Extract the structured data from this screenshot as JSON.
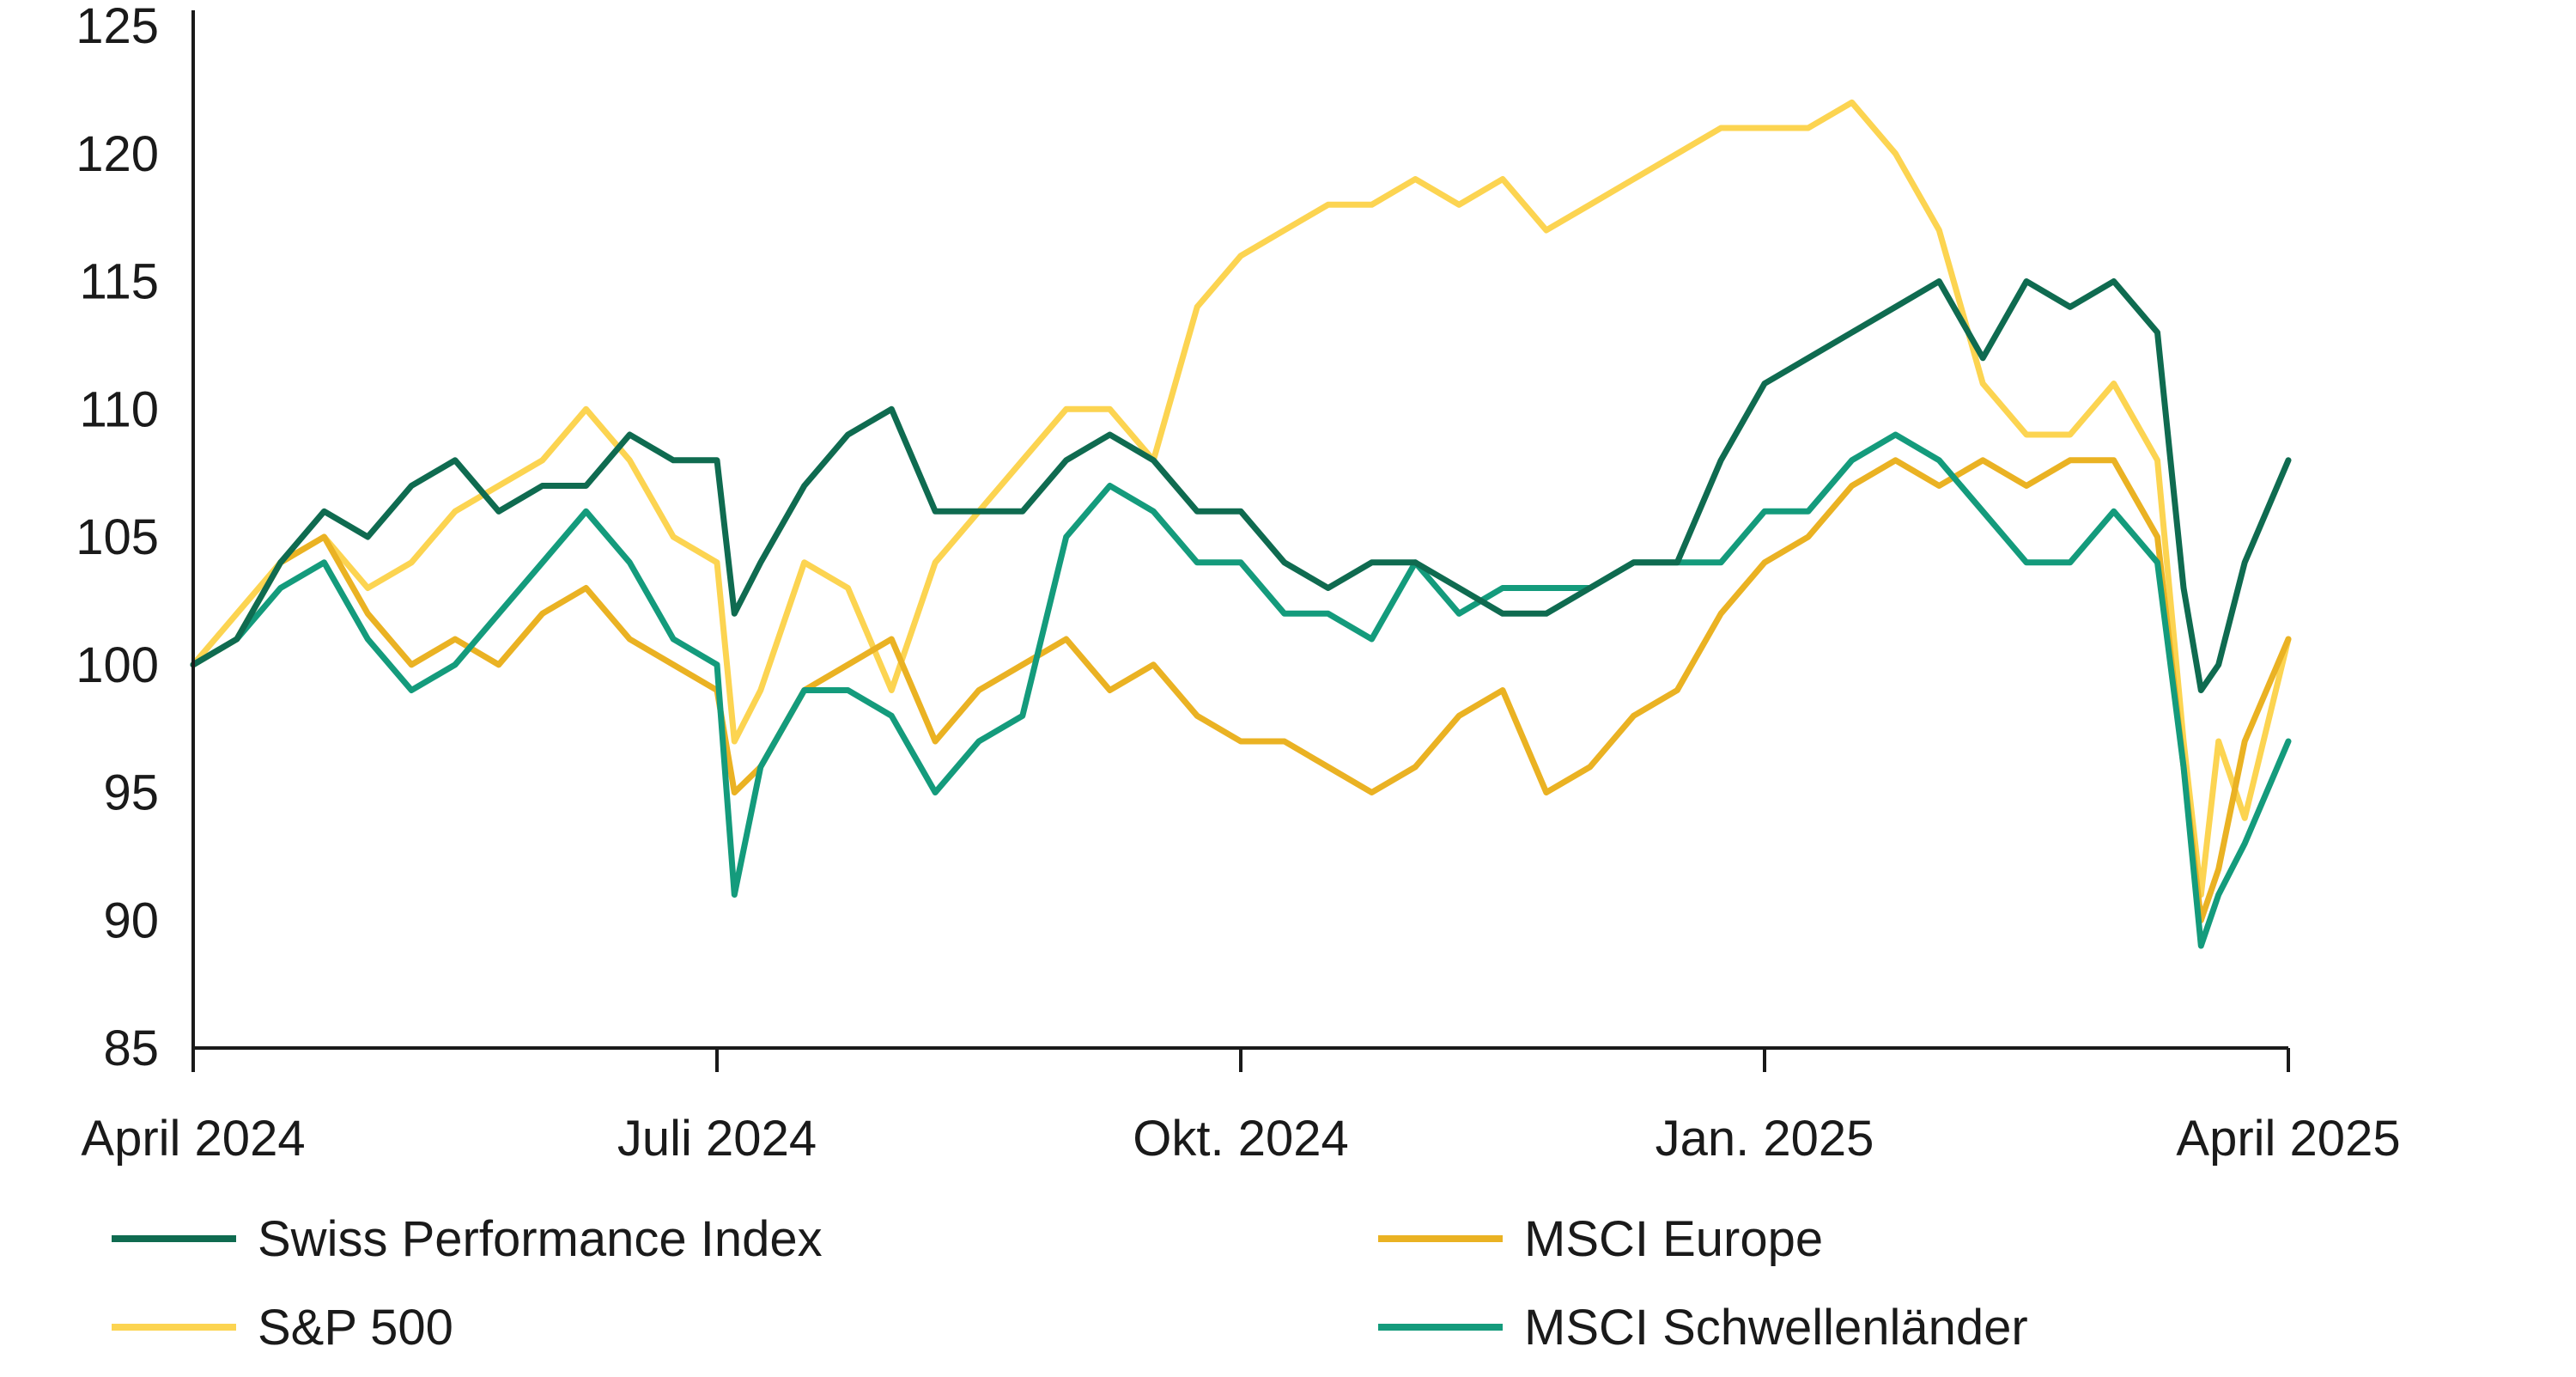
{
  "chart_data": {
    "type": "line",
    "title": "",
    "xlabel": "",
    "ylabel": "",
    "ylim": [
      85,
      125
    ],
    "xlim": [
      0,
      12
    ],
    "yticks": [
      85,
      90,
      95,
      100,
      105,
      110,
      115,
      120,
      125
    ],
    "xticks": [
      {
        "pos": 0,
        "label": "April 2024"
      },
      {
        "pos": 3,
        "label": "Juli 2024"
      },
      {
        "pos": 6,
        "label": "Okt. 2024"
      },
      {
        "pos": 9,
        "label": "Jan. 2025"
      },
      {
        "pos": 12,
        "label": "April 2025"
      }
    ],
    "grid": false,
    "legend_position": "bottom",
    "series": [
      {
        "name": "Swiss Performance Index",
        "color": "#0f6b50",
        "x": [
          0,
          0.25,
          0.5,
          0.75,
          1,
          1.25,
          1.5,
          1.75,
          2,
          2.25,
          2.5,
          2.75,
          3,
          3.1,
          3.25,
          3.5,
          3.75,
          4,
          4.25,
          4.5,
          4.75,
          5,
          5.25,
          5.5,
          5.75,
          6,
          6.25,
          6.5,
          6.75,
          7,
          7.25,
          7.5,
          7.75,
          8,
          8.25,
          8.5,
          8.75,
          9,
          9.25,
          9.5,
          9.75,
          10,
          10.25,
          10.5,
          10.75,
          11,
          11.25,
          11.4,
          11.5,
          11.6,
          11.75,
          12
        ],
        "values": [
          100,
          101,
          104,
          106,
          105,
          107,
          108,
          106,
          107,
          107,
          109,
          108,
          108,
          102,
          104,
          107,
          109,
          110,
          106,
          106,
          106,
          108,
          109,
          108,
          106,
          106,
          104,
          103,
          104,
          104,
          103,
          102,
          102,
          103,
          104,
          104,
          108,
          111,
          112,
          113,
          114,
          115,
          112,
          115,
          114,
          115,
          113,
          103,
          99,
          100,
          104,
          108
        ]
      },
      {
        "name": "MSCI Europe",
        "color": "#eab223",
        "x": [
          0,
          0.25,
          0.5,
          0.75,
          1,
          1.25,
          1.5,
          1.75,
          2,
          2.25,
          2.5,
          2.75,
          3,
          3.1,
          3.25,
          3.5,
          3.75,
          4,
          4.25,
          4.5,
          4.75,
          5,
          5.25,
          5.5,
          5.75,
          6,
          6.25,
          6.5,
          6.75,
          7,
          7.25,
          7.5,
          7.75,
          8,
          8.25,
          8.5,
          8.75,
          9,
          9.25,
          9.5,
          9.75,
          10,
          10.25,
          10.5,
          10.75,
          11,
          11.25,
          11.4,
          11.5,
          11.6,
          11.75,
          12
        ],
        "values": [
          100,
          101,
          104,
          105,
          102,
          100,
          101,
          100,
          102,
          103,
          101,
          100,
          99,
          95,
          96,
          99,
          100,
          101,
          97,
          99,
          100,
          101,
          99,
          100,
          98,
          97,
          97,
          96,
          95,
          96,
          98,
          99,
          95,
          96,
          98,
          99,
          102,
          104,
          105,
          107,
          108,
          107,
          108,
          107,
          108,
          108,
          105,
          96,
          90,
          92,
          97,
          101
        ]
      },
      {
        "name": "S&P 500",
        "color": "#fcd451",
        "x": [
          0,
          0.25,
          0.5,
          0.75,
          1,
          1.25,
          1.5,
          1.75,
          2,
          2.25,
          2.5,
          2.75,
          3,
          3.1,
          3.25,
          3.5,
          3.75,
          4,
          4.25,
          4.5,
          4.75,
          5,
          5.25,
          5.5,
          5.75,
          6,
          6.25,
          6.5,
          6.75,
          7,
          7.25,
          7.5,
          7.75,
          8,
          8.25,
          8.5,
          8.75,
          9,
          9.25,
          9.5,
          9.75,
          10,
          10.25,
          10.5,
          10.75,
          11,
          11.25,
          11.4,
          11.5,
          11.6,
          11.75,
          12
        ],
        "values": [
          100,
          102,
          104,
          105,
          103,
          104,
          106,
          107,
          108,
          110,
          108,
          105,
          104,
          97,
          99,
          104,
          103,
          99,
          104,
          106,
          108,
          110,
          110,
          108,
          114,
          116,
          117,
          118,
          118,
          119,
          118,
          119,
          117,
          118,
          119,
          120,
          121,
          121,
          121,
          122,
          120,
          117,
          111,
          109,
          109,
          111,
          108,
          97,
          91,
          97,
          94,
          101
        ]
      },
      {
        "name": "MSCI Schwellenländer",
        "color": "#149b7c",
        "x": [
          0,
          0.25,
          0.5,
          0.75,
          1,
          1.25,
          1.5,
          1.75,
          2,
          2.25,
          2.5,
          2.75,
          3,
          3.1,
          3.25,
          3.5,
          3.75,
          4,
          4.25,
          4.5,
          4.75,
          5,
          5.25,
          5.5,
          5.75,
          6,
          6.25,
          6.5,
          6.75,
          7,
          7.25,
          7.5,
          7.75,
          8,
          8.25,
          8.5,
          8.75,
          9,
          9.25,
          9.5,
          9.75,
          10,
          10.25,
          10.5,
          10.75,
          11,
          11.25,
          11.4,
          11.5,
          11.6,
          11.75,
          12
        ],
        "values": [
          100,
          101,
          103,
          104,
          101,
          99,
          100,
          102,
          104,
          106,
          104,
          101,
          100,
          91,
          96,
          99,
          99,
          98,
          95,
          97,
          98,
          105,
          107,
          106,
          104,
          104,
          102,
          102,
          101,
          104,
          102,
          103,
          103,
          103,
          104,
          104,
          104,
          106,
          106,
          108,
          109,
          108,
          106,
          104,
          104,
          106,
          104,
          96,
          89,
          91,
          93,
          97
        ]
      }
    ]
  }
}
